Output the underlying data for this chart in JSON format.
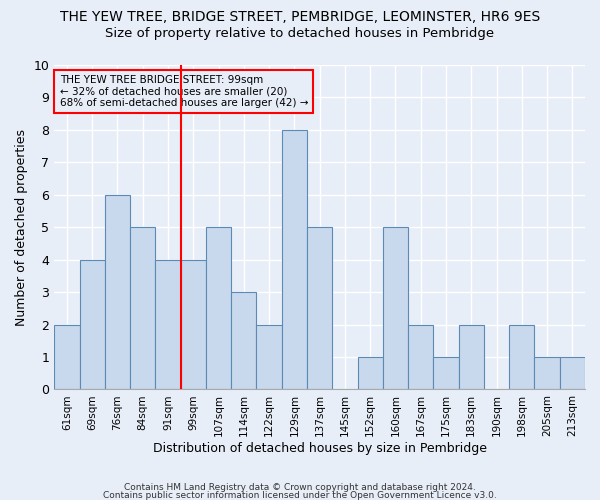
{
  "title": "THE YEW TREE, BRIDGE STREET, PEMBRIDGE, LEOMINSTER, HR6 9ES",
  "subtitle": "Size of property relative to detached houses in Pembridge",
  "xlabel": "Distribution of detached houses by size in Pembridge",
  "ylabel": "Number of detached properties",
  "bar_labels": [
    "61sqm",
    "69sqm",
    "76sqm",
    "84sqm",
    "91sqm",
    "99sqm",
    "107sqm",
    "114sqm",
    "122sqm",
    "129sqm",
    "137sqm",
    "145sqm",
    "152sqm",
    "160sqm",
    "167sqm",
    "175sqm",
    "183sqm",
    "190sqm",
    "198sqm",
    "205sqm",
    "213sqm"
  ],
  "bar_values": [
    2,
    4,
    6,
    5,
    4,
    4,
    5,
    3,
    2,
    8,
    5,
    0,
    1,
    5,
    2,
    1,
    2,
    0,
    2,
    1,
    1
  ],
  "bar_color": "#c9d9ed",
  "bar_edge_color": "#5b8ab5",
  "highlight_line_after_index": 5,
  "highlight_line_color": "red",
  "ylim": [
    0,
    10
  ],
  "yticks": [
    0,
    1,
    2,
    3,
    4,
    5,
    6,
    7,
    8,
    9,
    10
  ],
  "annotation_text": "THE YEW TREE BRIDGE STREET: 99sqm\n← 32% of detached houses are smaller (20)\n68% of semi-detached houses are larger (42) →",
  "footnote1": "Contains HM Land Registry data © Crown copyright and database right 2024.",
  "footnote2": "Contains public sector information licensed under the Open Government Licence v3.0.",
  "background_color": "#e8eef8",
  "grid_color": "#ffffff",
  "title_fontsize": 10,
  "subtitle_fontsize": 9.5
}
